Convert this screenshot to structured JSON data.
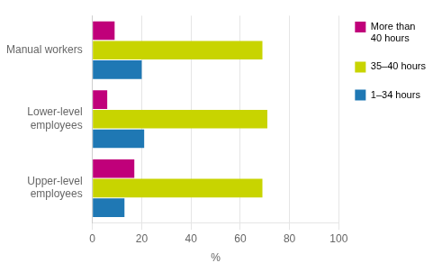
{
  "chart_data": {
    "type": "bar",
    "orientation": "horizontal",
    "categories": [
      "Manual workers",
      "Lower-level\nemployees",
      "Upper-level\nemployees"
    ],
    "series": [
      {
        "name": "More than\n40 hours",
        "color": "#c0007a",
        "values": [
          9,
          6,
          17
        ]
      },
      {
        "name": "35–40 hours",
        "color": "#c8d400",
        "values": [
          69,
          71,
          69
        ]
      },
      {
        "name": "1–34 hours",
        "color": "#1f78b4",
        "values": [
          20,
          21,
          13
        ]
      }
    ],
    "xlabel": "%",
    "xlim": [
      0,
      100
    ],
    "xticks": [
      0,
      20,
      40,
      60,
      80,
      100
    ],
    "grid": true,
    "legend": "right"
  }
}
